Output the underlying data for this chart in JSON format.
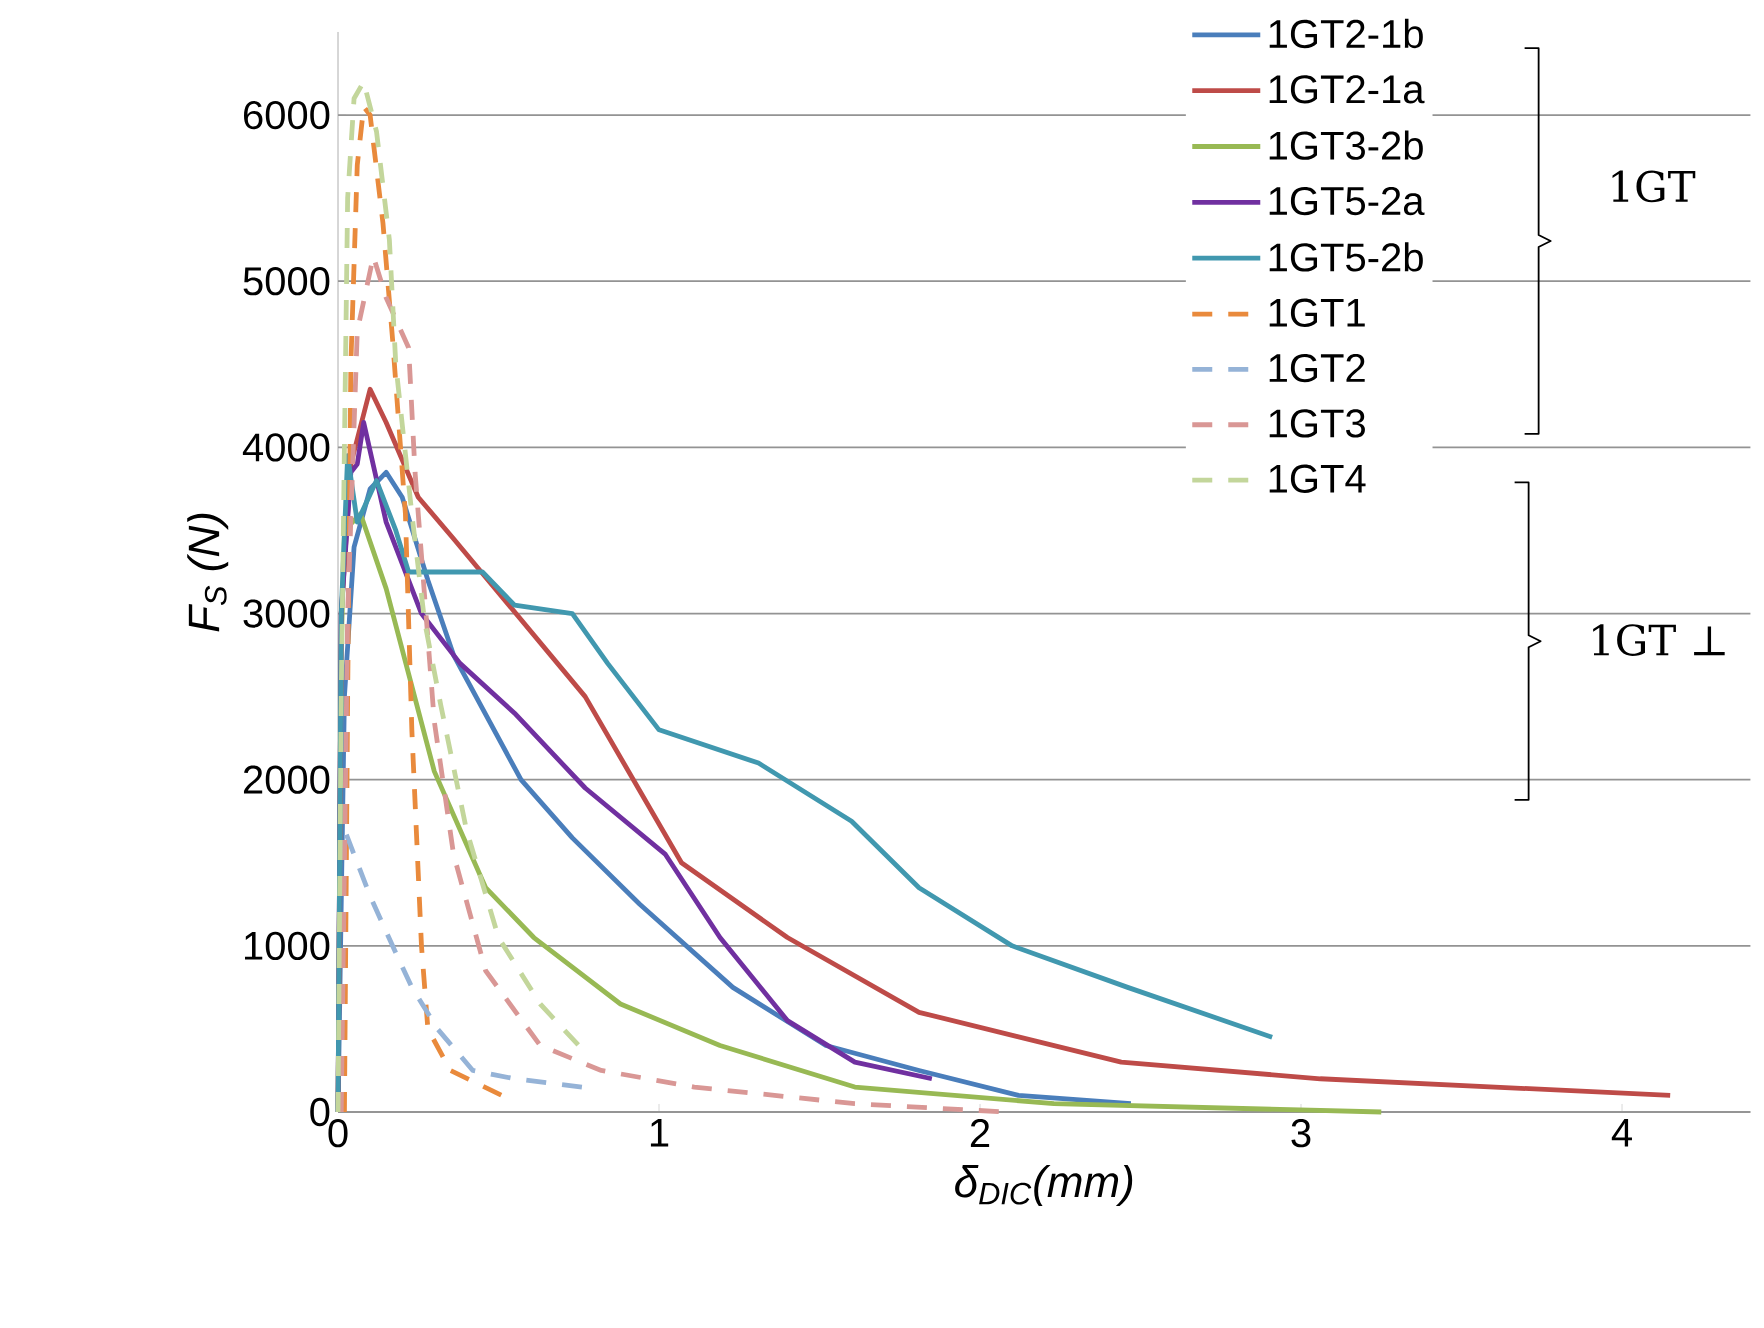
{
  "chart_data": {
    "type": "line",
    "xlabel": "δ$_{DIC}$(mm)",
    "ylabel": "F$_{S}$ (N)",
    "xlim": [
      0,
      4.4
    ],
    "ylim": [
      0,
      6500
    ],
    "xticks": [
      0,
      1,
      2,
      3,
      4
    ],
    "yticks": [
      0,
      1000,
      2000,
      3000,
      4000,
      5000,
      6000
    ],
    "grid": "y",
    "legend": "top right",
    "marker": "none",
    "annotations": [
      "1GT",
      "1GT ⊥"
    ],
    "series": [
      {
        "name": "1GT2-1b",
        "color": "#4a7ebb",
        "line_style": "solid",
        "x": [
          0,
          0.02,
          0.05,
          0.1,
          0.15,
          0.2,
          0.28,
          0.36,
          0.57,
          0.73,
          0.94,
          1.23,
          1.52,
          1.81,
          2.12,
          2.47
        ],
        "values": [
          0,
          2500,
          3400,
          3750,
          3850,
          3700,
          3200,
          2750,
          2000,
          1650,
          1250,
          750,
          400,
          250,
          100,
          50
        ]
      },
      {
        "name": "1GT2-1a",
        "color": "#be4b48",
        "line_style": "solid",
        "x": [
          0,
          0.01,
          0.04,
          0.1,
          0.15,
          0.25,
          0.36,
          0.77,
          1.07,
          1.4,
          1.81,
          2.44,
          3.06,
          4.15
        ],
        "values": [
          0,
          3000,
          3900,
          4350,
          4150,
          3700,
          3450,
          2500,
          1500,
          1050,
          600,
          300,
          200,
          100
        ]
      },
      {
        "name": "1GT3-2b",
        "color": "#98b954",
        "line_style": "solid",
        "x": [
          0,
          0.01,
          0.02,
          0.07,
          0.15,
          0.3,
          0.46,
          0.61,
          0.88,
          1.19,
          1.61,
          2.23,
          3.25
        ],
        "values": [
          0,
          2800,
          3500,
          3600,
          3150,
          2050,
          1350,
          1050,
          650,
          400,
          150,
          50,
          0
        ]
      },
      {
        "name": "1GT5-2a",
        "color": "#7030a0",
        "line_style": "solid",
        "x": [
          0,
          0.01,
          0.04,
          0.06,
          0.08,
          0.15,
          0.26,
          0.38,
          0.55,
          0.77,
          1.02,
          1.19,
          1.4,
          1.61,
          1.85
        ],
        "values": [
          0,
          3000,
          3850,
          3900,
          4150,
          3550,
          3000,
          2700,
          2400,
          1950,
          1550,
          1050,
          550,
          300,
          200
        ]
      },
      {
        "name": "1GT5-2b",
        "color": "#4198af",
        "line_style": "solid",
        "x": [
          0,
          0.01,
          0.03,
          0.06,
          0.12,
          0.18,
          0.22,
          0.45,
          0.55,
          0.73,
          0.84,
          1.0,
          1.31,
          1.6,
          1.81,
          2.1,
          2.46,
          2.91
        ],
        "values": [
          0,
          3000,
          3950,
          3550,
          3800,
          3500,
          3250,
          3250,
          3050,
          3000,
          2700,
          2300,
          2100,
          1750,
          1350,
          1000,
          750,
          450
        ]
      },
      {
        "name": "1GT1",
        "color": "#e98a3c",
        "line_style": "dashed",
        "x": [
          0.02,
          0.03,
          0.04,
          0.06,
          0.08,
          0.1,
          0.14,
          0.17,
          0.21,
          0.23,
          0.26,
          0.28,
          0.35,
          0.51
        ],
        "values": [
          0,
          2500,
          4500,
          5700,
          6050,
          6000,
          5350,
          4650,
          3600,
          2300,
          1000,
          500,
          250,
          100
        ]
      },
      {
        "name": "1GT2",
        "color": "#95b3d7",
        "line_style": "dashed",
        "x": [
          0,
          0.02,
          0.1,
          0.17,
          0.23,
          0.31,
          0.42,
          0.55,
          0.76
        ],
        "values": [
          0,
          1700,
          1300,
          1000,
          750,
          500,
          250,
          200,
          150
        ]
      },
      {
        "name": "1GT3",
        "color": "#d99795",
        "line_style": "dashed",
        "x": [
          0.01,
          0.03,
          0.06,
          0.11,
          0.15,
          0.22,
          0.24,
          0.3,
          0.36,
          0.46,
          0.63,
          0.82,
          1.11,
          1.61,
          2.08
        ],
        "values": [
          0,
          3000,
          4700,
          5150,
          4900,
          4600,
          3850,
          2350,
          1550,
          850,
          400,
          250,
          150,
          50,
          0
        ]
      },
      {
        "name": "1GT4",
        "color": "#c3d69b",
        "line_style": "dashed",
        "x": [
          0,
          0.01,
          0.03,
          0.05,
          0.08,
          0.12,
          0.16,
          0.18,
          0.23,
          0.27,
          0.32,
          0.4,
          0.5,
          0.63,
          0.75
        ],
        "values": [
          0,
          2500,
          5500,
          6100,
          6200,
          5900,
          5250,
          4500,
          3600,
          2950,
          2450,
          1700,
          1050,
          650,
          400
        ]
      }
    ]
  }
}
